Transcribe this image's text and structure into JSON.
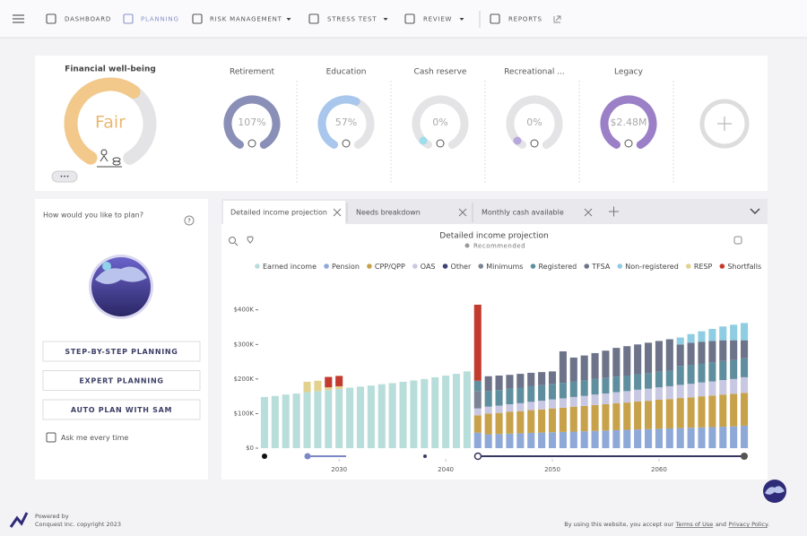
{
  "nav": {
    "items": [
      "DASHBOARD",
      "PLANNING",
      "RISK MANAGEMENT",
      "STRESS TEST",
      "REVIEW",
      "REPORTS"
    ]
  },
  "wellbeing": {
    "title": "Financial well-being",
    "status": "Fair",
    "more": "•••"
  },
  "goals": [
    {
      "name": "Retirement",
      "label": "107%"
    },
    {
      "name": "Education",
      "label": "57%"
    },
    {
      "name": "Cash reserve",
      "label": "0%"
    },
    {
      "name": "Recreational ...",
      "label": "0%"
    },
    {
      "name": "Legacy",
      "label": "$2.48M"
    }
  ],
  "planning": {
    "question": "How would you like to plan?",
    "help": "?",
    "options": [
      "STEP-BY-STEP PLANNING",
      "EXPERT PLANNING",
      "AUTO PLAN WITH SAM"
    ],
    "checkbox": "Ask me every time"
  },
  "tabs": [
    "Detailed income projection",
    "Needs breakdown",
    "Monthly cash available"
  ],
  "chart_data": {
    "type": "stacked_bar",
    "title": "Detailed income projection",
    "subtitle": "Recommended",
    "x": [
      2023,
      2024,
      2025,
      2026,
      2027,
      2028,
      2029,
      2030,
      2031,
      2032,
      2033,
      2034,
      2035,
      2036,
      2037,
      2038,
      2039,
      2040,
      2041,
      2042,
      2043,
      2044,
      2045,
      2046,
      2047,
      2048,
      2049,
      2050,
      2051,
      2052,
      2053,
      2054,
      2055,
      2056,
      2057,
      2058,
      2059,
      2060,
      2061,
      2062,
      2063,
      2064,
      2065,
      2066,
      2067,
      2068
    ],
    "xlim": [
      2022.5,
      2068.5
    ],
    "xticks": [
      2030,
      2040,
      2050,
      2060
    ],
    "ylim": [
      0,
      420
    ],
    "yticks": [
      {
        "value": 0,
        "label": "$0"
      },
      {
        "value": 100,
        "label": "$100K"
      },
      {
        "value": 200,
        "label": "$200K"
      },
      {
        "value": 300,
        "label": "$300K"
      },
      {
        "value": 400,
        "label": "$400K"
      }
    ],
    "grid": false,
    "series": [
      {
        "name": "Earned income",
        "color": "#b8dedb",
        "values": [
          148,
          151,
          155,
          158,
          162,
          165,
          168,
          171,
          175,
          178,
          181,
          185,
          188,
          192,
          196,
          200,
          205,
          210,
          215,
          222,
          0,
          0,
          0,
          0,
          0,
          0,
          0,
          0,
          0,
          0,
          0,
          0,
          0,
          0,
          0,
          0,
          0,
          0,
          0,
          0,
          0,
          0,
          0,
          0,
          0,
          0
        ]
      },
      {
        "name": "Pension",
        "color": "#8ea9d8",
        "values": [
          0,
          0,
          0,
          0,
          0,
          0,
          0,
          0,
          0,
          0,
          0,
          0,
          0,
          0,
          0,
          0,
          0,
          0,
          0,
          0,
          45,
          40,
          41,
          42,
          43,
          44,
          45,
          46,
          47,
          48,
          49,
          50,
          51,
          52,
          53,
          54,
          55,
          56,
          57,
          58,
          59,
          60,
          61,
          62,
          63,
          65
        ]
      },
      {
        "name": "CPP/QPP",
        "color": "#c7a24a",
        "values": [
          0,
          0,
          0,
          0,
          0,
          0,
          0,
          0,
          0,
          0,
          0,
          0,
          0,
          0,
          0,
          0,
          0,
          0,
          0,
          0,
          50,
          60,
          61,
          63,
          64,
          66,
          67,
          69,
          70,
          72,
          73,
          75,
          76,
          78,
          79,
          81,
          82,
          84,
          85,
          87,
          88,
          90,
          91,
          93,
          94,
          95
        ]
      },
      {
        "name": "OAS",
        "color": "#c9c8e3",
        "values": [
          0,
          0,
          0,
          0,
          0,
          0,
          0,
          0,
          0,
          0,
          0,
          0,
          0,
          0,
          0,
          0,
          0,
          0,
          0,
          0,
          20,
          20,
          21,
          22,
          23,
          24,
          25,
          26,
          27,
          28,
          29,
          30,
          31,
          32,
          33,
          34,
          35,
          36,
          37,
          38,
          39,
          40,
          41,
          42,
          43,
          45
        ]
      },
      {
        "name": "Other",
        "color": "#3e4272",
        "values": [
          0,
          0,
          0,
          0,
          0,
          0,
          0,
          0,
          0,
          0,
          0,
          0,
          0,
          0,
          0,
          0,
          0,
          0,
          0,
          0,
          0,
          0,
          0,
          0,
          0,
          0,
          0,
          0,
          0,
          0,
          0,
          0,
          0,
          0,
          0,
          0,
          0,
          0,
          0,
          0,
          0,
          0,
          0,
          0,
          0,
          0
        ]
      },
      {
        "name": "Minimums",
        "color": "#7b8494",
        "values": [
          0,
          0,
          0,
          0,
          0,
          0,
          0,
          0,
          0,
          0,
          0,
          0,
          0,
          0,
          0,
          0,
          0,
          0,
          0,
          0,
          50,
          0,
          0,
          0,
          0,
          0,
          0,
          0,
          0,
          0,
          0,
          0,
          0,
          0,
          0,
          0,
          0,
          0,
          0,
          0,
          0,
          0,
          0,
          0,
          0,
          0
        ]
      },
      {
        "name": "Registered",
        "color": "#5f8f9f",
        "values": [
          0,
          0,
          0,
          0,
          0,
          0,
          0,
          0,
          0,
          0,
          0,
          0,
          0,
          0,
          0,
          0,
          0,
          0,
          0,
          0,
          30,
          45,
          45,
          45,
          45,
          45,
          45,
          45,
          45,
          45,
          45,
          45,
          45,
          45,
          45,
          45,
          45,
          45,
          45,
          55,
          55,
          55,
          55,
          55,
          55,
          55
        ]
      },
      {
        "name": "TFSA",
        "color": "#6d7389",
        "values": [
          0,
          0,
          0,
          0,
          0,
          0,
          0,
          0,
          0,
          0,
          0,
          0,
          0,
          0,
          0,
          0,
          0,
          0,
          0,
          0,
          0,
          43,
          42,
          40,
          40,
          39,
          38,
          36,
          91,
          69,
          72,
          75,
          79,
          83,
          85,
          86,
          88,
          89,
          91,
          62,
          64,
          63,
          62,
          60,
          57,
          52
        ]
      },
      {
        "name": "Non-registered",
        "color": "#8fcde2",
        "values": [
          0,
          0,
          0,
          0,
          0,
          0,
          0,
          0,
          0,
          0,
          0,
          0,
          0,
          0,
          0,
          0,
          0,
          0,
          0,
          0,
          0,
          0,
          0,
          0,
          0,
          0,
          0,
          0,
          0,
          0,
          0,
          0,
          0,
          0,
          0,
          0,
          0,
          0,
          0,
          20,
          25,
          30,
          35,
          40,
          45,
          50
        ]
      },
      {
        "name": "RESP",
        "color": "#e2d28e",
        "values": [
          0,
          0,
          0,
          0,
          30,
          30,
          8,
          8,
          0,
          0,
          0,
          0,
          0,
          0,
          0,
          0,
          0,
          0,
          0,
          0,
          0,
          0,
          0,
          0,
          0,
          0,
          0,
          0,
          0,
          0,
          0,
          0,
          0,
          0,
          0,
          0,
          0,
          0,
          0,
          0,
          0,
          0,
          0,
          0,
          0,
          0
        ]
      },
      {
        "name": "Shortfalls",
        "color": "#c23b2e",
        "values": [
          0,
          0,
          0,
          0,
          0,
          0,
          30,
          30,
          0,
          0,
          0,
          0,
          0,
          0,
          0,
          0,
          0,
          0,
          0,
          0,
          220,
          0,
          0,
          0,
          0,
          0,
          0,
          0,
          0,
          0,
          0,
          0,
          0,
          0,
          0,
          0,
          0,
          0,
          0,
          0,
          0,
          0,
          0,
          0,
          0,
          0
        ]
      }
    ]
  },
  "footer": {
    "powered_by": "Powered by",
    "copyright": "Conquest Inc. copyright 2023",
    "legal_before": "By using this website, you accept our",
    "terms": "Terms of Use",
    "legal_and": "and",
    "privacy": "Privacy Policy",
    "legal_end": "."
  }
}
